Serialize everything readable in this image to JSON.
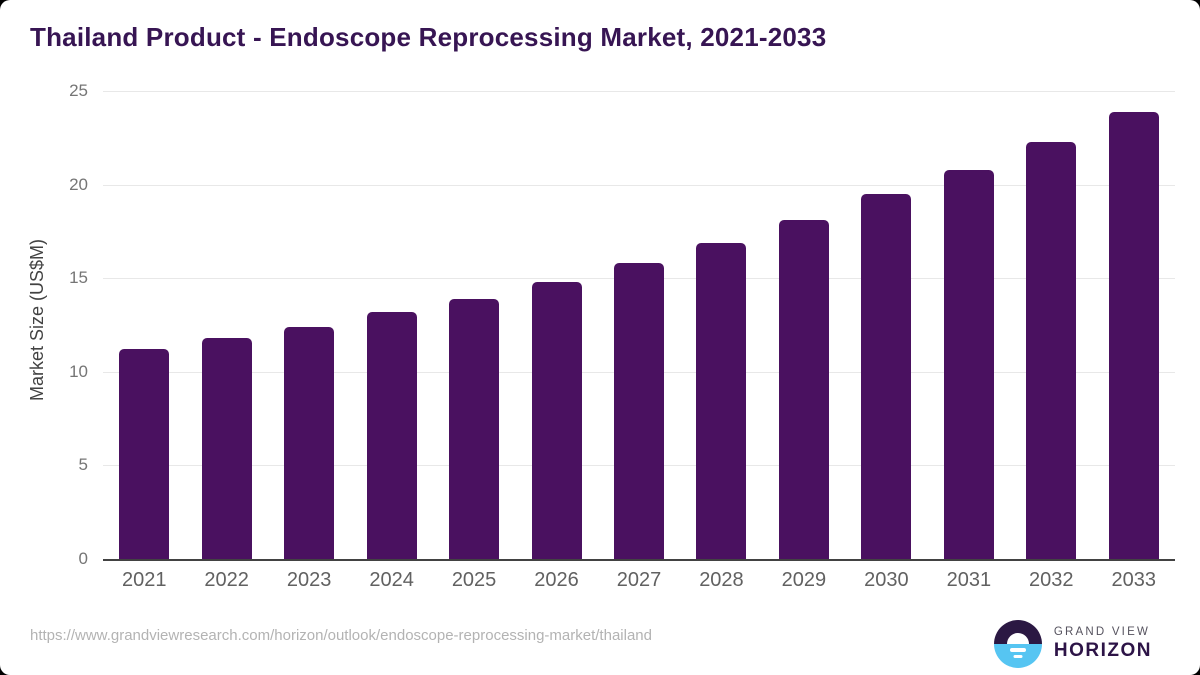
{
  "header": {
    "title": "Thailand Product - Endoscope Reprocessing Market, 2021-2033"
  },
  "chart_data": {
    "type": "bar",
    "title": "Thailand Product - Endoscope Reprocessing Market, 2021-2033",
    "xlabel": "",
    "ylabel": "Market Size (US$M)",
    "categories": [
      "2021",
      "2022",
      "2023",
      "2024",
      "2025",
      "2026",
      "2027",
      "2028",
      "2029",
      "2030",
      "2031",
      "2032",
      "2033"
    ],
    "values": [
      11.2,
      11.8,
      12.4,
      13.2,
      13.9,
      14.8,
      15.8,
      16.9,
      18.1,
      19.5,
      20.8,
      22.3,
      23.9
    ],
    "ylim": [
      0,
      25
    ],
    "yticks": [
      0,
      5,
      10,
      15,
      20,
      25
    ],
    "grid": true,
    "legend": "none",
    "bar_color": "#4a1160"
  },
  "footer": {
    "source_url": "https://www.grandviewresearch.com/horizon/outlook/endoscope-reprocessing-market/thailand",
    "brand_line1": "GRAND VIEW",
    "brand_line2": "HORIZON"
  },
  "colors": {
    "title_text": "#371553",
    "bar": "#4a1160",
    "axis_line": "#424242",
    "gridline": "#e8e8e8",
    "tick_text": "#757575",
    "xlabel_text": "#616161",
    "url_text": "#b3b3b3",
    "logo_top_half": "#2b1843",
    "logo_bottom_half": "#56c5f2",
    "logo_brand_text": "#2d1447"
  }
}
